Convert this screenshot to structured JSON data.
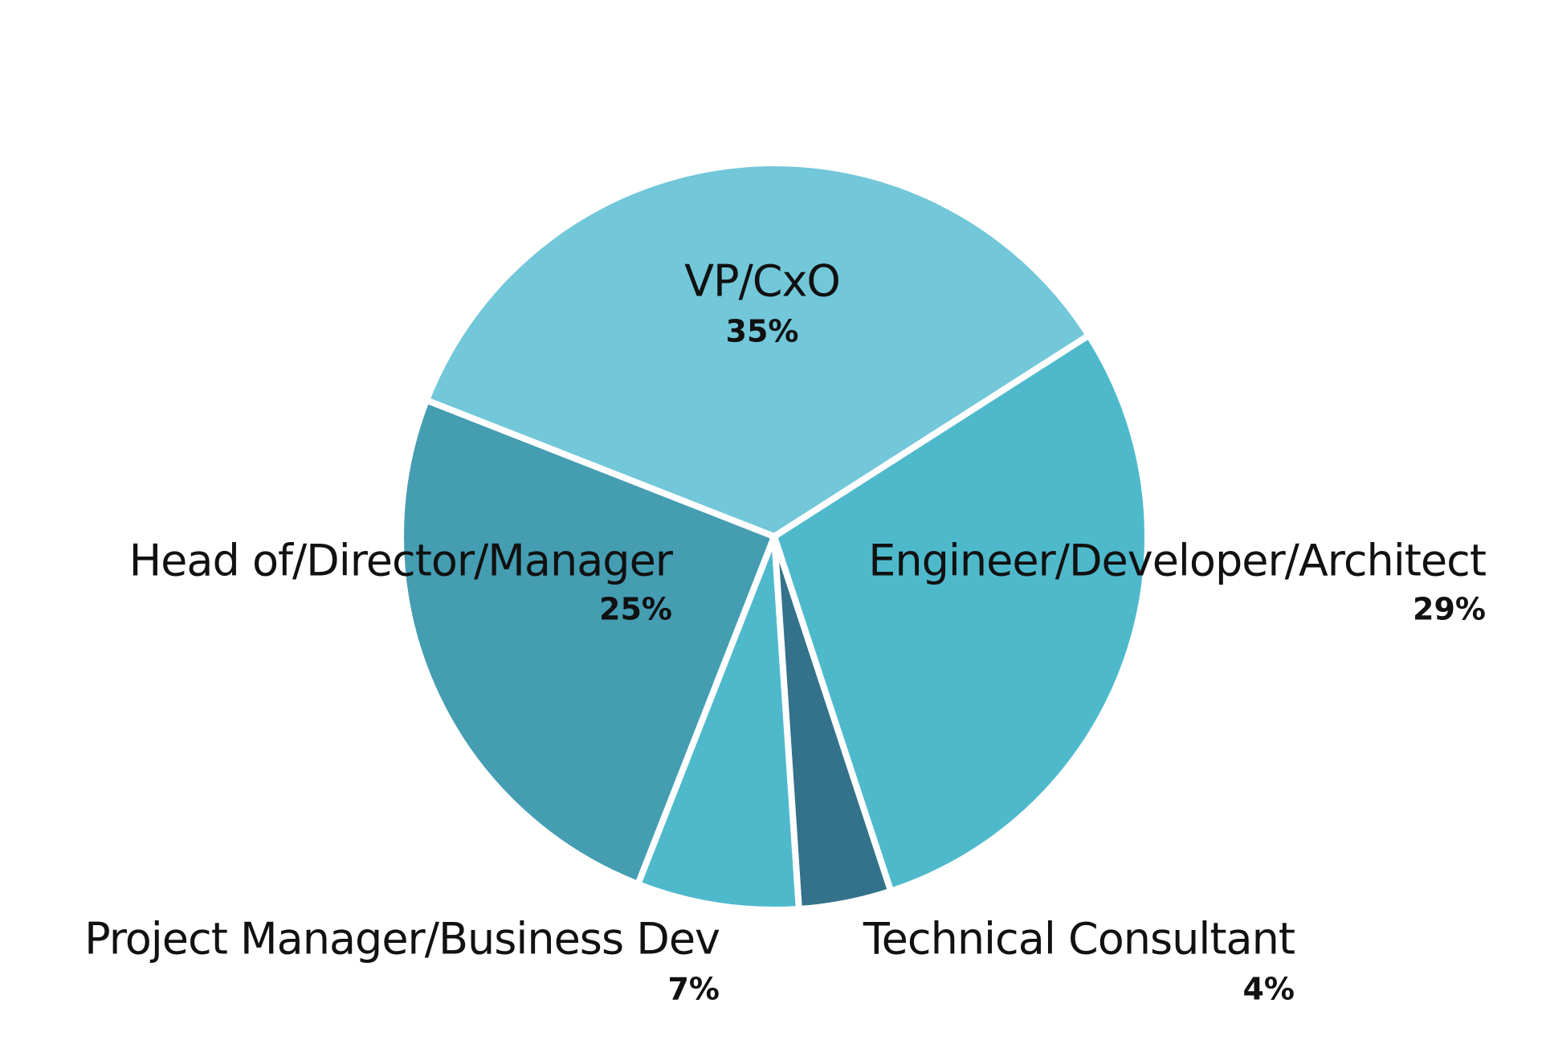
{
  "chart_data": {
    "type": "pie",
    "categories": [
      "Engineer/Developer/Architect",
      "Technical Consultant",
      "Project Manager/Business Dev",
      "Head of/Director/Manager",
      "VP/CxO"
    ],
    "values": [
      29,
      4,
      7,
      25,
      35
    ],
    "value_labels": [
      "29%",
      "4%",
      "7%",
      "25%",
      "35%"
    ],
    "colors": [
      "#4fb9cc",
      "#33728a",
      "#4fb9cc",
      "#459db2",
      "#72c7d9"
    ]
  }
}
